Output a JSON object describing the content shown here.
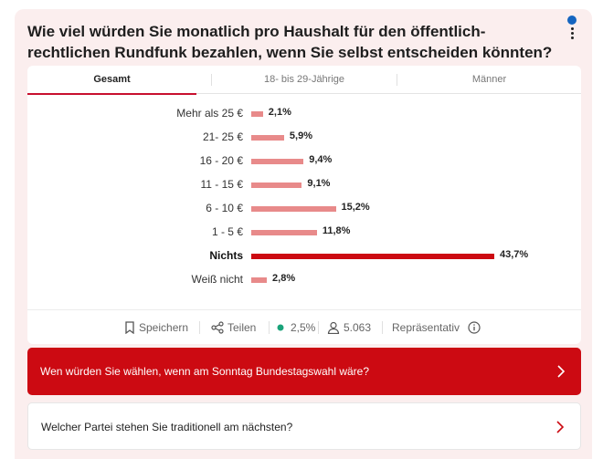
{
  "question": "Wie viel würden Sie monatlich pro Haushalt für den öffentlich-rechtlichen Rundfunk bezahlen, wenn Sie selbst entscheiden könnten?",
  "tabs": [
    {
      "label": "Gesamt",
      "active": true
    },
    {
      "label": "18- bis 29-Jährige",
      "active": false
    },
    {
      "label": "Männer",
      "active": false
    }
  ],
  "chart_data": {
    "type": "bar",
    "orientation": "horizontal",
    "title": "",
    "categories": [
      "Mehr als 25 €",
      "21- 25 €",
      "16 - 20 €",
      "11 - 15 €",
      "6 - 10 €",
      "1 - 5 €",
      "Nichts",
      "Weiß nicht"
    ],
    "values": [
      2.1,
      5.9,
      9.4,
      9.1,
      15.2,
      11.8,
      43.7,
      2.8
    ],
    "value_labels": [
      "2,1%",
      "5,9%",
      "9,4%",
      "9,1%",
      "15,2%",
      "11,8%",
      "43,7%",
      "2,8%"
    ],
    "highlight_index": 6,
    "unit": "%",
    "xlim": [
      0,
      43.7
    ],
    "colors": {
      "bar": "#e88a8a",
      "highlight": "#cc0a12"
    }
  },
  "footer": {
    "save_label": "Speichern",
    "share_label": "Teilen",
    "error_margin": "2,5%",
    "respondents": "5.063",
    "representative_label": "Repräsentativ"
  },
  "next_questions": [
    {
      "label": "Wen würden Sie wählen, wenn am Sonntag Bundestagswahl wäre?"
    },
    {
      "label": "Welcher Partei stehen Sie traditionell am nächsten?"
    }
  ],
  "colors": {
    "accent": "#cc0a12",
    "background": "#fbeeee",
    "status_dot": "#1aa37a",
    "notification_dot": "#1565c0"
  }
}
